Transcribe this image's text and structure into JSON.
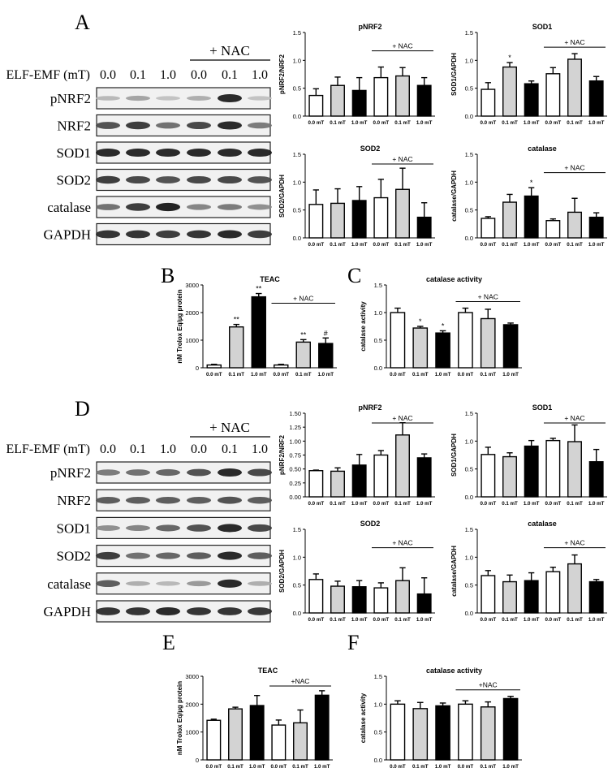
{
  "figure": {
    "panel_letters": [
      "A",
      "B",
      "C",
      "D",
      "E",
      "F"
    ]
  },
  "blots": [
    {
      "panel": "A",
      "nac_label": "+ NAC",
      "dose_label": "ELF-EMF (mT)",
      "doses": [
        "0.0",
        "0.1",
        "1.0",
        "0.0",
        "0.1",
        "1.0"
      ],
      "rows": [
        "pNRF2",
        "NRF2",
        "SOD1",
        "SOD2",
        "catalase",
        "GAPDH"
      ]
    },
    {
      "panel": "D",
      "nac_label": "+ NAC",
      "dose_label": "ELF-EMF (mT)",
      "doses": [
        "0.0",
        "0.1",
        "1.0",
        "0.0",
        "0.1",
        "1.0"
      ],
      "rows": [
        "pNRF2",
        "NRF2",
        "SOD1",
        "SOD2",
        "catalase",
        "GAPDH"
      ]
    }
  ],
  "colors": {
    "bar_fills": [
      "#ffffff",
      "#d3d3d3",
      "#000000",
      "#ffffff",
      "#d3d3d3",
      "#000000"
    ],
    "stroke": "#000000"
  },
  "chart_data": [
    {
      "id": "A-pNRF2",
      "type": "bar",
      "title": "pNRF2",
      "ylabel": "pNRF2/NRF2",
      "ylim": [
        0,
        1.5
      ],
      "yticks": [
        "0.0",
        "0.5",
        "1.0",
        "1.5"
      ],
      "categories": [
        "0.0 mT",
        "0.1 mT",
        "1.0 mT",
        "0.0 mT",
        "0.1 mT",
        "1.0 mT"
      ],
      "values": [
        0.37,
        0.55,
        0.46,
        0.69,
        0.72,
        0.55
      ],
      "errors": [
        0.12,
        0.15,
        0.23,
        0.19,
        0.15,
        0.14
      ],
      "sig": [
        "",
        "",
        "",
        "",
        "",
        ""
      ],
      "nac_label": "+ NAC"
    },
    {
      "id": "A-SOD1",
      "type": "bar",
      "title": "SOD1",
      "ylabel": "SOD1/GAPDH",
      "ylim": [
        0,
        1.5
      ],
      "yticks": [
        "0.0",
        "0.5",
        "1.0",
        "1.5"
      ],
      "categories": [
        "0.0 mT",
        "0.1 mT",
        "1.0 mT",
        "0.0 mT",
        "0.1 mT",
        "1.0 mT"
      ],
      "values": [
        0.48,
        0.88,
        0.58,
        0.76,
        1.02,
        0.63
      ],
      "errors": [
        0.12,
        0.08,
        0.05,
        0.11,
        0.1,
        0.08
      ],
      "sig": [
        "",
        "*",
        "",
        "",
        "",
        ""
      ],
      "nac_label": "+ NAC"
    },
    {
      "id": "A-SOD2",
      "type": "bar",
      "title": "SOD2",
      "ylabel": "SOD2/GAPDH",
      "ylim": [
        0,
        1.5
      ],
      "yticks": [
        "0.0",
        "0.5",
        "1.0",
        "1.5"
      ],
      "categories": [
        "0.0 mT",
        "0.1 mT",
        "1.0 mT",
        "0.0 mT",
        "0.1 mT",
        "1.0 mT"
      ],
      "values": [
        0.6,
        0.62,
        0.67,
        0.72,
        0.87,
        0.37
      ],
      "errors": [
        0.26,
        0.26,
        0.25,
        0.33,
        0.38,
        0.26
      ],
      "sig": [
        "",
        "",
        "",
        "",
        "",
        ""
      ],
      "nac_label": "+ NAC"
    },
    {
      "id": "A-catalase",
      "type": "bar",
      "title": "catalase",
      "ylabel": "catalase/GAPDH",
      "ylim": [
        0,
        1.5
      ],
      "yticks": [
        "0.0",
        "0.5",
        "1.0",
        "1.5"
      ],
      "categories": [
        "0.0 mT",
        "0.1 mT",
        "1.0 mT",
        "0.0 mT",
        "0.1 mT",
        "1.0 mT"
      ],
      "values": [
        0.35,
        0.64,
        0.75,
        0.31,
        0.46,
        0.37
      ],
      "errors": [
        0.03,
        0.14,
        0.15,
        0.03,
        0.25,
        0.08
      ],
      "sig": [
        "",
        "",
        "*",
        "",
        "",
        ""
      ],
      "nac_label": "+ NAC"
    },
    {
      "id": "B-TEAC",
      "type": "bar",
      "title": "TEAC",
      "ylabel": "nM Trolox Eq/µg protein",
      "ylim": [
        0,
        3000
      ],
      "yticks": [
        "0",
        "1000",
        "2000",
        "3000"
      ],
      "categories": [
        "0.0 mT",
        "0.1 mT",
        "1.0 mT",
        "0.0 mT",
        "0.1 mT",
        "1.0 mT"
      ],
      "values": [
        100,
        1480,
        2570,
        100,
        930,
        880
      ],
      "errors": [
        25,
        90,
        120,
        25,
        90,
        200
      ],
      "sig": [
        "",
        "**",
        "**",
        "",
        "**",
        "#"
      ],
      "nac_label": "+ NAC"
    },
    {
      "id": "C-catalase-activity",
      "type": "bar",
      "title": "catalase activity",
      "ylabel": "catalase activity",
      "ylim": [
        0,
        1.5
      ],
      "yticks": [
        "0.0",
        "0.5",
        "1.0",
        "1.5"
      ],
      "categories": [
        "0.0 mT",
        "0.1 mT",
        "1.0 mT",
        "0.0 mT",
        "0.1 mT",
        "1.0 mT"
      ],
      "values": [
        1.0,
        0.72,
        0.63,
        1.0,
        0.89,
        0.78
      ],
      "errors": [
        0.08,
        0.03,
        0.04,
        0.08,
        0.17,
        0.03
      ],
      "sig": [
        "",
        "*",
        "*",
        "",
        "",
        ""
      ],
      "nac_label": "+ NAC"
    },
    {
      "id": "D-pNRF2",
      "type": "bar",
      "title": "pNRF2",
      "ylabel": "pNRF2/NRF2",
      "ylim": [
        0,
        1.5
      ],
      "yticks": [
        "0.00",
        "0.25",
        "0.50",
        "0.75",
        "1.00",
        "1.25",
        "1.50"
      ],
      "categories": [
        "0.0 mT",
        "0.1 mT",
        "1.0 mT",
        "0.0 mT",
        "0.1 mT",
        "1.0 mT"
      ],
      "values": [
        0.47,
        0.46,
        0.57,
        0.75,
        1.11,
        0.7
      ],
      "errors": [
        0.01,
        0.06,
        0.19,
        0.08,
        0.22,
        0.07
      ],
      "sig": [
        "",
        "",
        "",
        "",
        "",
        ""
      ],
      "nac_label": "+ NAC"
    },
    {
      "id": "D-SOD1",
      "type": "bar",
      "title": "SOD1",
      "ylabel": "SOD1/GAPDH",
      "ylim": [
        0,
        1.5
      ],
      "yticks": [
        "0.0",
        "0.5",
        "1.0",
        "1.5"
      ],
      "categories": [
        "0.0 mT",
        "0.1 mT",
        "1.0 mT",
        "0.0 mT",
        "0.1 mT",
        "1.0 mT"
      ],
      "values": [
        0.76,
        0.72,
        0.91,
        1.01,
        0.99,
        0.63
      ],
      "errors": [
        0.13,
        0.07,
        0.1,
        0.04,
        0.3,
        0.22
      ],
      "sig": [
        "",
        "",
        "",
        "",
        "",
        ""
      ],
      "nac_label": "+ NAC"
    },
    {
      "id": "D-SOD2",
      "type": "bar",
      "title": "SOD2",
      "ylabel": "SOD2/GAPDH",
      "ylim": [
        0,
        1.5
      ],
      "yticks": [
        "0.0",
        "0.5",
        "1.0",
        "1.5"
      ],
      "categories": [
        "0.0 mT",
        "0.1 mT",
        "1.0 mT",
        "0.0 mT",
        "0.1 mT",
        "1.0 mT"
      ],
      "values": [
        0.6,
        0.48,
        0.47,
        0.45,
        0.58,
        0.34
      ],
      "errors": [
        0.1,
        0.09,
        0.11,
        0.09,
        0.23,
        0.29
      ],
      "sig": [
        "",
        "",
        "",
        "",
        "",
        ""
      ],
      "nac_label": "+ NAC"
    },
    {
      "id": "D-catalase",
      "type": "bar",
      "title": "catalase",
      "ylabel": "catalase/GAPDH",
      "ylim": [
        0,
        1.5
      ],
      "yticks": [
        "0.0",
        "0.5",
        "1.0",
        "1.5"
      ],
      "categories": [
        "0.0 mT",
        "0.1 mT",
        "1.0 mT",
        "0.0 mT",
        "0.1 mT",
        "1.0 mT"
      ],
      "values": [
        0.67,
        0.56,
        0.58,
        0.74,
        0.88,
        0.56
      ],
      "errors": [
        0.09,
        0.12,
        0.14,
        0.08,
        0.16,
        0.04
      ],
      "sig": [
        "",
        "",
        "",
        "",
        "",
        ""
      ],
      "nac_label": "+ NAC"
    },
    {
      "id": "E-TEAC",
      "type": "bar",
      "title": "TEAC",
      "ylabel": "nM Trolox Eq/µg protein",
      "ylim": [
        0,
        3000
      ],
      "yticks": [
        "0",
        "1000",
        "2000",
        "3000"
      ],
      "categories": [
        "0.0 mT",
        "0.1 mT",
        "1.0 mT",
        "0.0 mT",
        "0.1 mT",
        "1.0 mT"
      ],
      "values": [
        1420,
        1830,
        1950,
        1250,
        1330,
        2320
      ],
      "errors": [
        40,
        60,
        360,
        180,
        460,
        160
      ],
      "sig": [
        "",
        "",
        "",
        "",
        "",
        ""
      ],
      "nac_label": "+NAC"
    },
    {
      "id": "F-catalase-activity",
      "type": "bar",
      "title": "catalase activity",
      "ylabel": "catalase activity",
      "ylim": [
        0,
        1.5
      ],
      "yticks": [
        "0.0",
        "0.5",
        "1.0",
        "1.5"
      ],
      "categories": [
        "0.0 mT",
        "0.1 mT",
        "1.0 mT",
        "0.0 mT",
        "0.1 mT",
        "1.0 mT"
      ],
      "values": [
        1.0,
        0.92,
        0.97,
        1.0,
        0.95,
        1.1
      ],
      "errors": [
        0.06,
        0.11,
        0.05,
        0.06,
        0.09,
        0.04
      ],
      "sig": [
        "",
        "",
        "",
        "",
        "",
        ""
      ],
      "nac_label": "+NAC"
    }
  ]
}
